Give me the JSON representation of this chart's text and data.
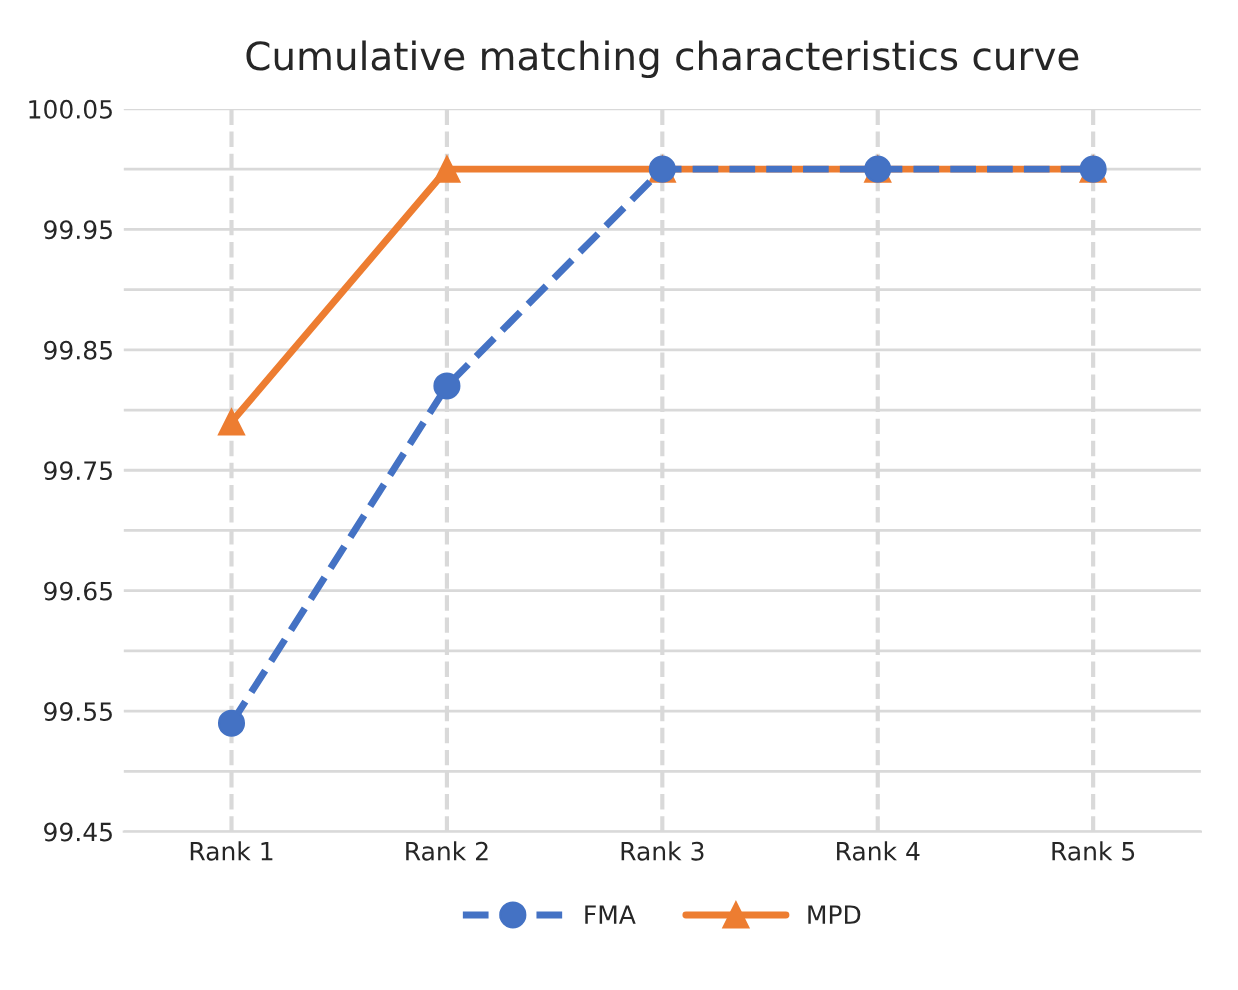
{
  "chart_data": {
    "type": "line",
    "title": "Cumulative matching characteristics curve",
    "categories": [
      "Rank 1",
      "Rank 2",
      "Rank 3",
      "Rank 4",
      "Rank 5"
    ],
    "series": [
      {
        "name": "FMA",
        "color": "#4472c4",
        "values": [
          99.54,
          99.82,
          100.0,
          100.0,
          100.0
        ],
        "marker": "circle",
        "line_style": "dashed"
      },
      {
        "name": "MPD",
        "color": "#ed7d31",
        "values": [
          99.79,
          100.0,
          100.0,
          100.0,
          100.0
        ],
        "marker": "triangle",
        "line_style": "solid"
      }
    ],
    "ylim": [
      99.45,
      100.05
    ],
    "yticks": [
      {
        "value": 99.45,
        "label": "99.45"
      },
      {
        "value": 99.5,
        "label": null
      },
      {
        "value": 99.55,
        "label": "99.55"
      },
      {
        "value": 99.6,
        "label": null
      },
      {
        "value": 99.65,
        "label": "99.65"
      },
      {
        "value": 99.7,
        "label": null
      },
      {
        "value": 99.75,
        "label": "99.75"
      },
      {
        "value": 99.8,
        "label": null
      },
      {
        "value": 99.85,
        "label": "99.85"
      },
      {
        "value": 99.9,
        "label": null
      },
      {
        "value": 99.95,
        "label": "99.95"
      },
      {
        "value": 100.0,
        "label": null
      },
      {
        "value": 100.05,
        "label": "100.05"
      }
    ],
    "grid": true,
    "legend": "bottom"
  }
}
